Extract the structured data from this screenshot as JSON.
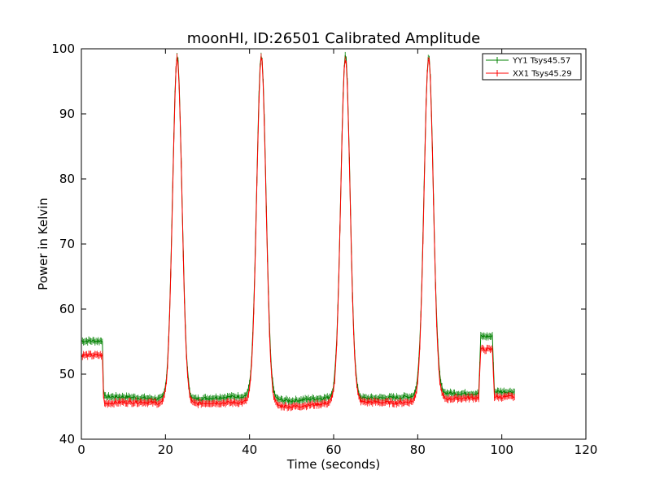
{
  "chart_data": {
    "type": "line",
    "title": "moonHI, ID:26501 Calibrated Amplitude",
    "xlabel": "Time (seconds)",
    "ylabel": "Power in Kelvin",
    "xlim": [
      0,
      120
    ],
    "ylim": [
      40,
      100
    ],
    "xticks": [
      "0",
      "20",
      "40",
      "60",
      "80",
      "100",
      "120"
    ],
    "yticks": [
      "40",
      "50",
      "60",
      "70",
      "80",
      "90",
      "100"
    ],
    "grid": false,
    "legend_position": "top-right",
    "peak_centers": [
      22.8,
      42.8,
      62.8,
      82.6
    ],
    "series": [
      {
        "name": "YY1 Tsys45.57",
        "color": "#008000",
        "points": [
          [
            0,
            55.1
          ],
          [
            5,
            55.1
          ],
          [
            5.3,
            46.5
          ],
          [
            10,
            46.5
          ],
          [
            15,
            46.3
          ],
          [
            19.5,
            46.1
          ],
          [
            22.8,
            99
          ],
          [
            26,
            46.1
          ],
          [
            30,
            46.3
          ],
          [
            35,
            46.5
          ],
          [
            39.5,
            46.6
          ],
          [
            42.8,
            99
          ],
          [
            46,
            46.1
          ],
          [
            50,
            45.9
          ],
          [
            55,
            46.2
          ],
          [
            59.5,
            46.4
          ],
          [
            62.8,
            99
          ],
          [
            66,
            46.3
          ],
          [
            70,
            46.3
          ],
          [
            75,
            46.4
          ],
          [
            79.5,
            46.6
          ],
          [
            82.6,
            99
          ],
          [
            86,
            47.1
          ],
          [
            90,
            47
          ],
          [
            94.5,
            47
          ],
          [
            95,
            55.8
          ],
          [
            97.8,
            55.8
          ],
          [
            98.2,
            47.3
          ],
          [
            103,
            47.3
          ]
        ]
      },
      {
        "name": "XX1 Tsys45.29",
        "color": "#ff0000",
        "points": [
          [
            0,
            52.9
          ],
          [
            5,
            52.9
          ],
          [
            5.3,
            45.5
          ],
          [
            10,
            45.7
          ],
          [
            15,
            45.7
          ],
          [
            19.5,
            45.5
          ],
          [
            22.8,
            98.6
          ],
          [
            26,
            45.4
          ],
          [
            30,
            45.6
          ],
          [
            35,
            45.6
          ],
          [
            39.5,
            45.7
          ],
          [
            42.8,
            98.6
          ],
          [
            46,
            45.2
          ],
          [
            50,
            45
          ],
          [
            55,
            45.3
          ],
          [
            59.5,
            45.6
          ],
          [
            62.8,
            98.6
          ],
          [
            66,
            45.7
          ],
          [
            70,
            45.7
          ],
          [
            75,
            45.6
          ],
          [
            79.5,
            45.8
          ],
          [
            82.6,
            98.6
          ],
          [
            86,
            46.2
          ],
          [
            90,
            46.3
          ],
          [
            94.5,
            46.4
          ],
          [
            95,
            53.8
          ],
          [
            97.8,
            53.8
          ],
          [
            98.2,
            46.5
          ],
          [
            103,
            46.5
          ]
        ]
      }
    ]
  }
}
